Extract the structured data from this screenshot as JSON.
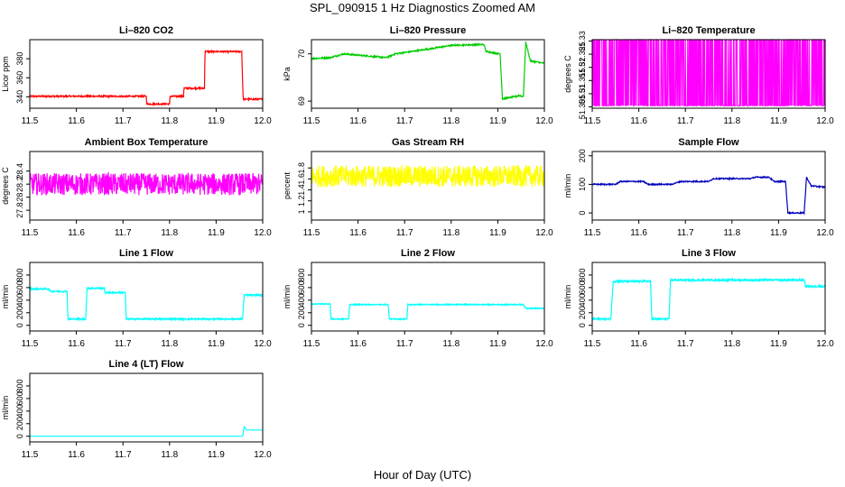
{
  "figure": {
    "title": "SPL_090915  1 Hz Diagnostics Zoomed AM",
    "xlabel": "Hour of Day (UTC)"
  },
  "chart_data": [
    {
      "type": "line",
      "title": "Li–820 CO2",
      "ylabel": "Licor ppm",
      "color": "#ff0000",
      "xlim": [
        11.5,
        12.0
      ],
      "ylim": [
        328,
        400
      ],
      "yticks": [
        340,
        360,
        380
      ],
      "x": [
        11.5,
        11.6,
        11.7,
        11.75,
        11.751,
        11.8,
        11.801,
        11.83,
        11.831,
        11.875,
        11.876,
        11.955,
        11.958,
        12.0
      ],
      "values": [
        340.5,
        340.6,
        340.5,
        340.5,
        332.5,
        332.5,
        340.5,
        340.5,
        349.0,
        349.0,
        387.5,
        387.5,
        337.5,
        337.5
      ],
      "noise": 0.8
    },
    {
      "type": "line",
      "title": "Li–820 Pressure",
      "ylabel": "kPa",
      "color": "#00cc00",
      "xlim": [
        11.5,
        12.0
      ],
      "ylim": [
        68.85,
        70.3
      ],
      "yticks": [
        69.0,
        70.0
      ],
      "x": [
        11.5,
        11.54,
        11.57,
        11.66,
        11.68,
        11.75,
        11.8,
        11.87,
        11.875,
        11.905,
        11.91,
        11.94,
        11.945,
        11.955,
        11.96,
        11.97,
        12.0
      ],
      "values": [
        69.9,
        69.92,
        70.0,
        69.92,
        70.0,
        70.1,
        70.18,
        70.2,
        70.05,
        70.0,
        69.05,
        69.1,
        69.12,
        69.1,
        70.25,
        69.85,
        69.8
      ],
      "noise": 0.015
    },
    {
      "type": "line",
      "title": "Li–820 Temperature",
      "ylabel": "degrees C",
      "color": "#ff00ff",
      "xlim": [
        11.5,
        12.0
      ],
      "ylim": [
        51.3045,
        51.3305
      ],
      "yticks": [
        51.305,
        51.31,
        51.315,
        51.32,
        51.325,
        51.33
      ],
      "x": [
        11.5,
        12.0
      ],
      "values": [
        51.3055,
        51.3055
      ],
      "alt_value": 51.3305,
      "noise": 0
    },
    {
      "type": "line",
      "title": "Ambient Box Temperature",
      "ylabel": "degrees C",
      "color": "#ff00ff",
      "xlim": [
        11.5,
        12.0
      ],
      "ylim": [
        27.65,
        28.7
      ],
      "yticks": [
        27.8,
        28.0,
        28.2,
        28.4
      ],
      "x": [
        11.5,
        12.0
      ],
      "values": [
        28.2,
        28.2
      ],
      "noise": 0.17
    },
    {
      "type": "line",
      "title": "Gas Stream RH",
      "ylabel": "percent",
      "color": "#ffff00",
      "xlim": [
        11.5,
        12.0
      ],
      "ylim": [
        0.85,
        2.1
      ],
      "yticks": [
        1.0,
        1.2,
        1.4,
        1.6,
        1.8
      ],
      "x": [
        11.5,
        12.0
      ],
      "values": [
        1.65,
        1.65
      ],
      "noise": 0.2
    },
    {
      "type": "line",
      "title": "Sample Flow",
      "ylabel": "ml/min",
      "color": "#0000bb",
      "xlim": [
        11.5,
        12.0
      ],
      "ylim": [
        -25,
        215
      ],
      "yticks": [
        0,
        100,
        200
      ],
      "x": [
        11.5,
        11.55,
        11.56,
        11.61,
        11.62,
        11.67,
        11.69,
        11.75,
        11.76,
        11.84,
        11.85,
        11.88,
        11.89,
        11.915,
        11.92,
        11.955,
        11.96,
        11.97,
        12.0
      ],
      "values": [
        100,
        100,
        110,
        110,
        100,
        100,
        110,
        110,
        120,
        120,
        125,
        125,
        110,
        110,
        0,
        0,
        125,
        95,
        90
      ],
      "noise": 2
    },
    {
      "type": "line",
      "title": "Line 1 Flow",
      "ylabel": "ml/min",
      "color": "#00ffff",
      "xlim": [
        11.5,
        12.0
      ],
      "ylim": [
        -90,
        1000
      ],
      "yticks": [
        0,
        200,
        400,
        600,
        800
      ],
      "x": [
        11.5,
        11.54,
        11.545,
        11.58,
        11.582,
        11.62,
        11.623,
        11.66,
        11.662,
        11.705,
        11.707,
        11.957,
        11.96,
        12.0
      ],
      "values": [
        580,
        580,
        540,
        540,
        100,
        100,
        590,
        590,
        520,
        520,
        100,
        100,
        480,
        480
      ],
      "noise": 12
    },
    {
      "type": "line",
      "title": "Line 2 Flow",
      "ylabel": "ml/min",
      "color": "#00ffff",
      "xlim": [
        11.5,
        12.0
      ],
      "ylim": [
        -90,
        1000
      ],
      "yticks": [
        0,
        200,
        400,
        600,
        800
      ],
      "x": [
        11.5,
        11.54,
        11.542,
        11.58,
        11.582,
        11.665,
        11.667,
        11.705,
        11.707,
        11.955,
        11.96,
        12.0
      ],
      "values": [
        340,
        340,
        100,
        100,
        330,
        330,
        100,
        100,
        330,
        330,
        270,
        270
      ],
      "noise": 8
    },
    {
      "type": "line",
      "title": "Line 3 Flow",
      "ylabel": "ml/min",
      "color": "#00ffff",
      "xlim": [
        11.5,
        12.0
      ],
      "ylim": [
        -90,
        1000
      ],
      "yticks": [
        0,
        200,
        400,
        600,
        800
      ],
      "x": [
        11.5,
        11.54,
        11.545,
        11.625,
        11.628,
        11.665,
        11.668,
        11.955,
        11.958,
        12.0
      ],
      "values": [
        100,
        100,
        700,
        700,
        100,
        100,
        720,
        720,
        620,
        620
      ],
      "noise": 15
    },
    {
      "type": "line",
      "title": "Line 4 (LT) Flow",
      "ylabel": "ml/min",
      "color": "#00ffff",
      "xlim": [
        11.5,
        12.0
      ],
      "ylim": [
        -90,
        1000
      ],
      "yticks": [
        0,
        200,
        400,
        600,
        800
      ],
      "x": [
        11.5,
        11.957,
        11.96,
        11.965,
        12.0
      ],
      "values": [
        0,
        0,
        150,
        100,
        100
      ],
      "noise": 0
    }
  ],
  "xticks": [
    "11.5",
    "11.6",
    "11.7",
    "11.8",
    "11.9",
    "12.0"
  ]
}
